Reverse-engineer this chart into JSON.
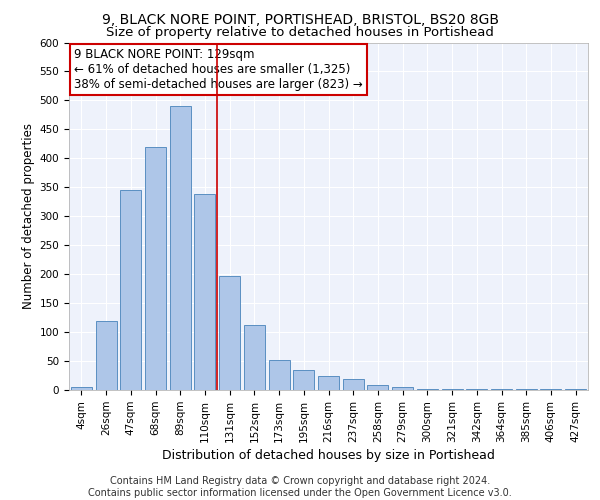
{
  "title1": "9, BLACK NORE POINT, PORTISHEAD, BRISTOL, BS20 8GB",
  "title2": "Size of property relative to detached houses in Portishead",
  "xlabel": "Distribution of detached houses by size in Portishead",
  "ylabel": "Number of detached properties",
  "footer1": "Contains HM Land Registry data © Crown copyright and database right 2024.",
  "footer2": "Contains public sector information licensed under the Open Government Licence v3.0.",
  "categories": [
    "4sqm",
    "26sqm",
    "47sqm",
    "68sqm",
    "89sqm",
    "110sqm",
    "131sqm",
    "152sqm",
    "173sqm",
    "195sqm",
    "216sqm",
    "237sqm",
    "258sqm",
    "279sqm",
    "300sqm",
    "321sqm",
    "342sqm",
    "364sqm",
    "385sqm",
    "406sqm",
    "427sqm"
  ],
  "values": [
    5,
    120,
    345,
    420,
    490,
    338,
    196,
    113,
    51,
    35,
    24,
    19,
    8,
    5,
    2,
    2,
    1,
    1,
    1,
    1,
    1
  ],
  "bar_color": "#aec6e8",
  "bar_edge_color": "#5a8fc2",
  "annotation_line1": "9 BLACK NORE POINT: 129sqm",
  "annotation_line2": "← 61% of detached houses are smaller (1,325)",
  "annotation_line3": "38% of semi-detached houses are larger (823) →",
  "vline_bar_index": 5,
  "vline_color": "#cc0000",
  "ylim": [
    0,
    600
  ],
  "yticks": [
    0,
    50,
    100,
    150,
    200,
    250,
    300,
    350,
    400,
    450,
    500,
    550,
    600
  ],
  "background_color": "#eef2fb",
  "grid_color": "#ffffff",
  "title1_fontsize": 10,
  "title2_fontsize": 9.5,
  "annotation_fontsize": 8.5,
  "xlabel_fontsize": 9,
  "ylabel_fontsize": 8.5,
  "footer_fontsize": 7,
  "tick_fontsize": 7.5
}
